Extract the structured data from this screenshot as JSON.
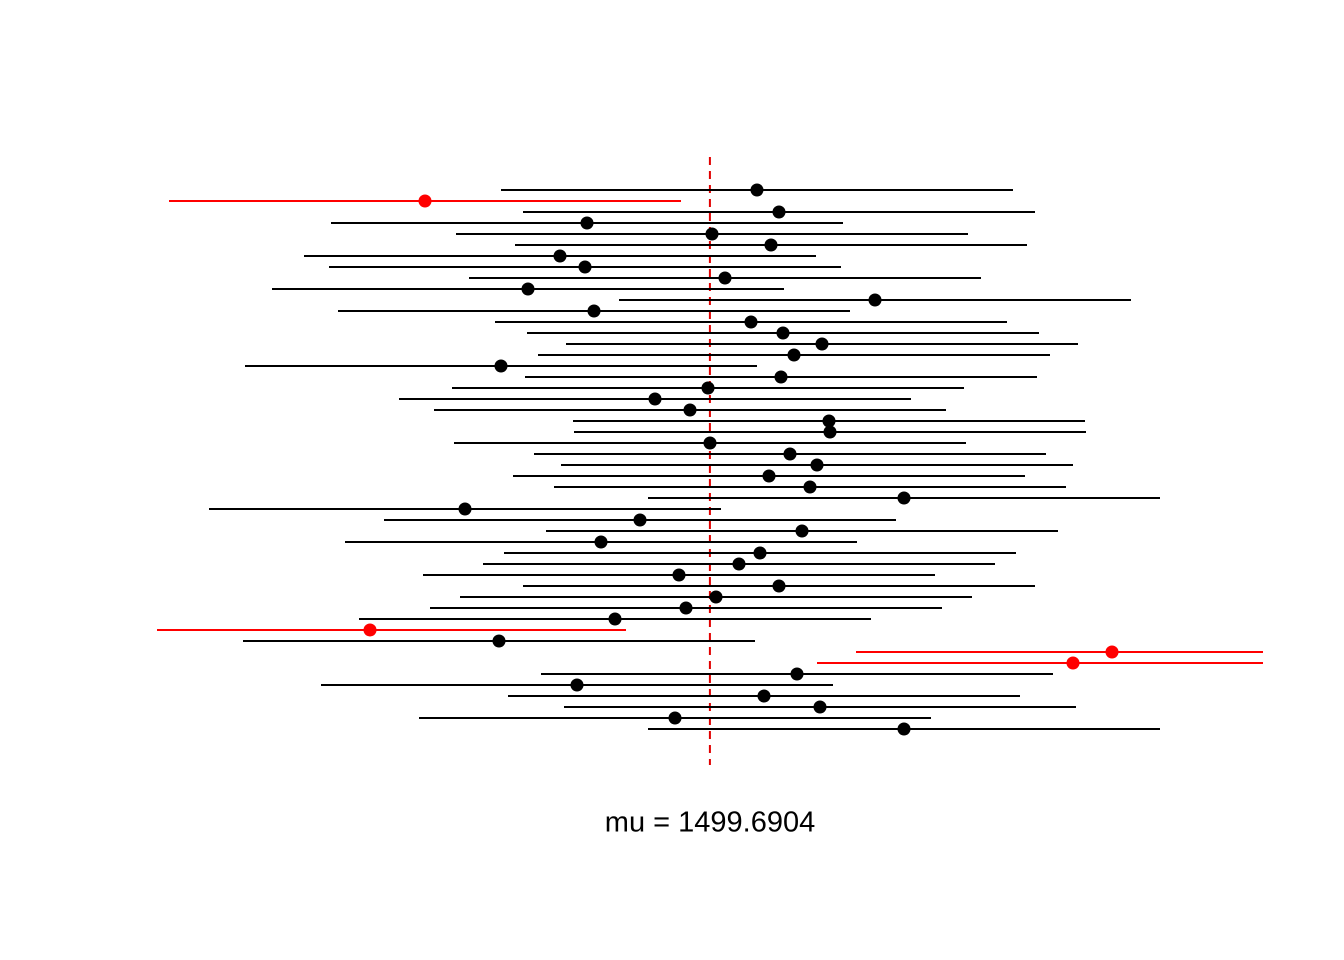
{
  "chart_data": {
    "type": "interval",
    "means": [
      1504.4,
      1471.2,
      1506.6,
      1487.4,
      1499.9,
      1505.8,
      1484.7,
      1487.2,
      1501.2,
      1481.5,
      1516.2,
      1488.1,
      1503.8,
      1507.0,
      1510.9,
      1508.1,
      1478.8,
      1506.8,
      1499.5,
      1494.2,
      1497.7,
      1511.6,
      1511.7,
      1499.7,
      1507.7,
      1510.4,
      1505.6,
      1509.7,
      1519.1,
      1475.2,
      1492.7,
      1508.9,
      1488.8,
      1504.7,
      1502.6,
      1496.6,
      1506.6,
      1500.3,
      1497.3,
      1490.2,
      1465.7,
      1478.6,
      1539.9,
      1536.0,
      1508.4,
      1486.4,
      1505.1,
      1510.7,
      1496.2,
      1519.1
    ],
    "margin": 25.6,
    "mu": 1499.6904,
    "mu_label": "mu = 1499.6904",
    "xlim": [
      1444.4,
      1555.0
    ],
    "color": "#000000",
    "miss_color": "#ff0000",
    "mu_color": "#e00000"
  }
}
